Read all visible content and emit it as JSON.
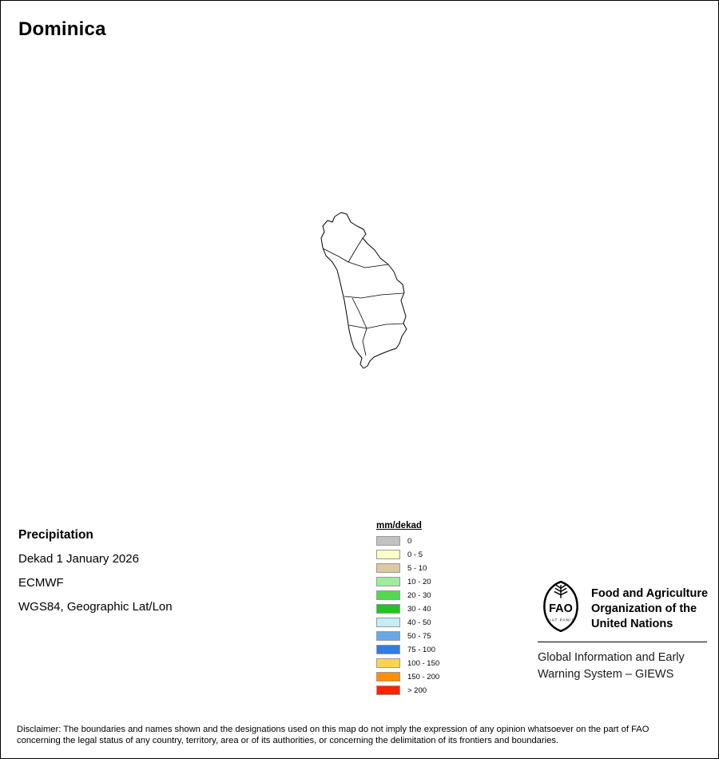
{
  "title": "Dominica",
  "map": {
    "country": "Dominica",
    "outline_color": "#000000",
    "fill_color": "#FFFFFF"
  },
  "info": {
    "heading": "Precipitation",
    "dekad": "Dekad 1 January 2026",
    "source": "ECMWF",
    "projection": "WGS84, Geographic Lat/Lon"
  },
  "legend": {
    "title": "mm/dekad",
    "items": [
      {
        "label": "0",
        "color": "#C2C2C2"
      },
      {
        "label": "0 - 5",
        "color": "#FFFFC8"
      },
      {
        "label": "5 - 10",
        "color": "#DCC9A2"
      },
      {
        "label": "10 - 20",
        "color": "#9CEE9C"
      },
      {
        "label": "20 - 30",
        "color": "#4EDB4E"
      },
      {
        "label": "30 - 40",
        "color": "#21C421"
      },
      {
        "label": "40 - 50",
        "color": "#C5EDF5"
      },
      {
        "label": "50 - 75",
        "color": "#67A9E6"
      },
      {
        "label": "75 - 100",
        "color": "#2F7DE1"
      },
      {
        "label": "100 - 150",
        "color": "#FFD34D"
      },
      {
        "label": "150 - 200",
        "color": "#FF8E00"
      },
      {
        "label": "> 200",
        "color": "#FF2100"
      }
    ]
  },
  "fao": {
    "logo_text": "FAO",
    "logo_motto": "FIAT PANIS",
    "org_line1": "Food and Agriculture",
    "org_line2": "Organization of the",
    "org_line3": "United Nations",
    "giews_line1": "Global Information and Early",
    "giews_line2": "Warning System – GIEWS"
  },
  "disclaimer": {
    "line1": "Disclaimer: The boundaries and names shown and the designations used on this map do not imply the expression of any opinion whatsoever on the part of FAO",
    "line2": "concerning the legal status of any country, territory, area or of its authorities, or concerning the delimitation of its frontiers and boundaries."
  }
}
